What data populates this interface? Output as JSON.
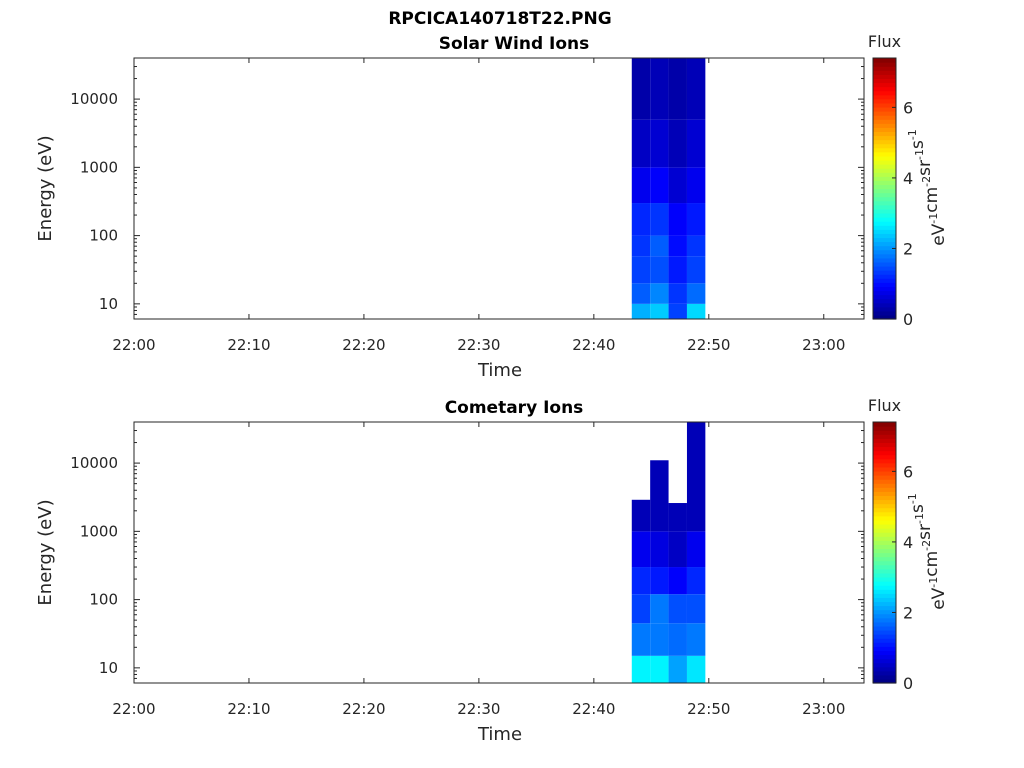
{
  "figure_title": "RPCICA140718T22.PNG",
  "colorbar": {
    "title": "Flux",
    "label": "eV-1cm-2sr-1s-1",
    "label_parts": [
      [
        "eV",
        "-1"
      ],
      [
        "cm",
        "-2"
      ],
      [
        "sr",
        "-1"
      ],
      [
        "s",
        "-1"
      ]
    ],
    "range": [
      0,
      7.4
    ],
    "ticks": [
      "0",
      "2",
      "4",
      "6"
    ],
    "tick_values": [
      0,
      2,
      4,
      6
    ],
    "colormap": "jet"
  },
  "chart_data": [
    {
      "type": "heatmap",
      "title": "Solar Wind Ions",
      "xlabel": "Time",
      "ylabel": "Energy (eV)",
      "x_ticks": [
        "22:00",
        "22:10",
        "22:20",
        "22:30",
        "22:40",
        "22:50",
        "23:00"
      ],
      "x_tick_minutes": [
        0,
        10,
        20,
        30,
        40,
        50,
        60
      ],
      "xlim_minutes": [
        0,
        63.5
      ],
      "y_scale": "log",
      "y_ticks": [
        "10",
        "100",
        "1000",
        "10000"
      ],
      "y_tick_values": [
        10,
        100,
        1000,
        10000
      ],
      "ylim": [
        6,
        40000
      ],
      "time_bins_minutes": [
        [
          43.3,
          44.9
        ],
        [
          44.9,
          46.5
        ],
        [
          46.5,
          48.1
        ],
        [
          48.1,
          49.7
        ]
      ],
      "energy_bands": [
        {
          "range": [
            6,
            10
          ],
          "flux": [
            2.2,
            2.4,
            1.4,
            2.5
          ]
        },
        {
          "range": [
            10,
            20
          ],
          "flux": [
            1.6,
            1.9,
            1.3,
            1.7
          ]
        },
        {
          "range": [
            20,
            50
          ],
          "flux": [
            1.4,
            1.5,
            1.1,
            1.4
          ]
        },
        {
          "range": [
            50,
            100
          ],
          "flux": [
            1.3,
            1.6,
            1.0,
            1.3
          ]
        },
        {
          "range": [
            100,
            300
          ],
          "flux": [
            1.2,
            1.3,
            0.9,
            1.1
          ]
        },
        {
          "range": [
            300,
            1000
          ],
          "flux": [
            0.8,
            0.9,
            0.6,
            0.8
          ]
        },
        {
          "range": [
            1000,
            5000
          ],
          "flux": [
            0.5,
            0.6,
            0.4,
            0.6
          ]
        },
        {
          "range": [
            5000,
            40000
          ],
          "flux": [
            0.3,
            0.4,
            0.3,
            0.4
          ]
        }
      ]
    },
    {
      "type": "heatmap",
      "title": "Cometary Ions",
      "xlabel": "Time",
      "ylabel": "Energy (eV)",
      "x_ticks": [
        "22:00",
        "22:10",
        "22:20",
        "22:30",
        "22:40",
        "22:50",
        "23:00"
      ],
      "x_tick_minutes": [
        0,
        10,
        20,
        30,
        40,
        50,
        60
      ],
      "xlim_minutes": [
        0,
        63.5
      ],
      "y_scale": "log",
      "y_ticks": [
        "10",
        "100",
        "1000",
        "10000"
      ],
      "y_tick_values": [
        10,
        100,
        1000,
        10000
      ],
      "ylim": [
        6,
        40000
      ],
      "time_bins_minutes": [
        [
          43.3,
          44.9
        ],
        [
          44.9,
          46.5
        ],
        [
          46.5,
          48.1
        ],
        [
          48.1,
          49.7
        ]
      ],
      "column_tops_eV": [
        2900,
        11000,
        2600,
        40000
      ],
      "energy_bands": [
        {
          "range": [
            6,
            15
          ],
          "flux": [
            2.7,
            2.7,
            2.1,
            2.6
          ]
        },
        {
          "range": [
            15,
            45
          ],
          "flux": [
            1.8,
            1.8,
            1.7,
            1.8
          ]
        },
        {
          "range": [
            45,
            120
          ],
          "flux": [
            1.4,
            1.8,
            1.5,
            1.5
          ]
        },
        {
          "range": [
            120,
            300
          ],
          "flux": [
            1.2,
            1.1,
            0.9,
            1.2
          ]
        },
        {
          "range": [
            300,
            1000
          ],
          "flux": [
            0.8,
            0.7,
            0.5,
            0.8
          ]
        },
        {
          "range": [
            1000,
            40000
          ],
          "flux": [
            0.4,
            0.4,
            0.4,
            0.4
          ]
        }
      ]
    }
  ]
}
